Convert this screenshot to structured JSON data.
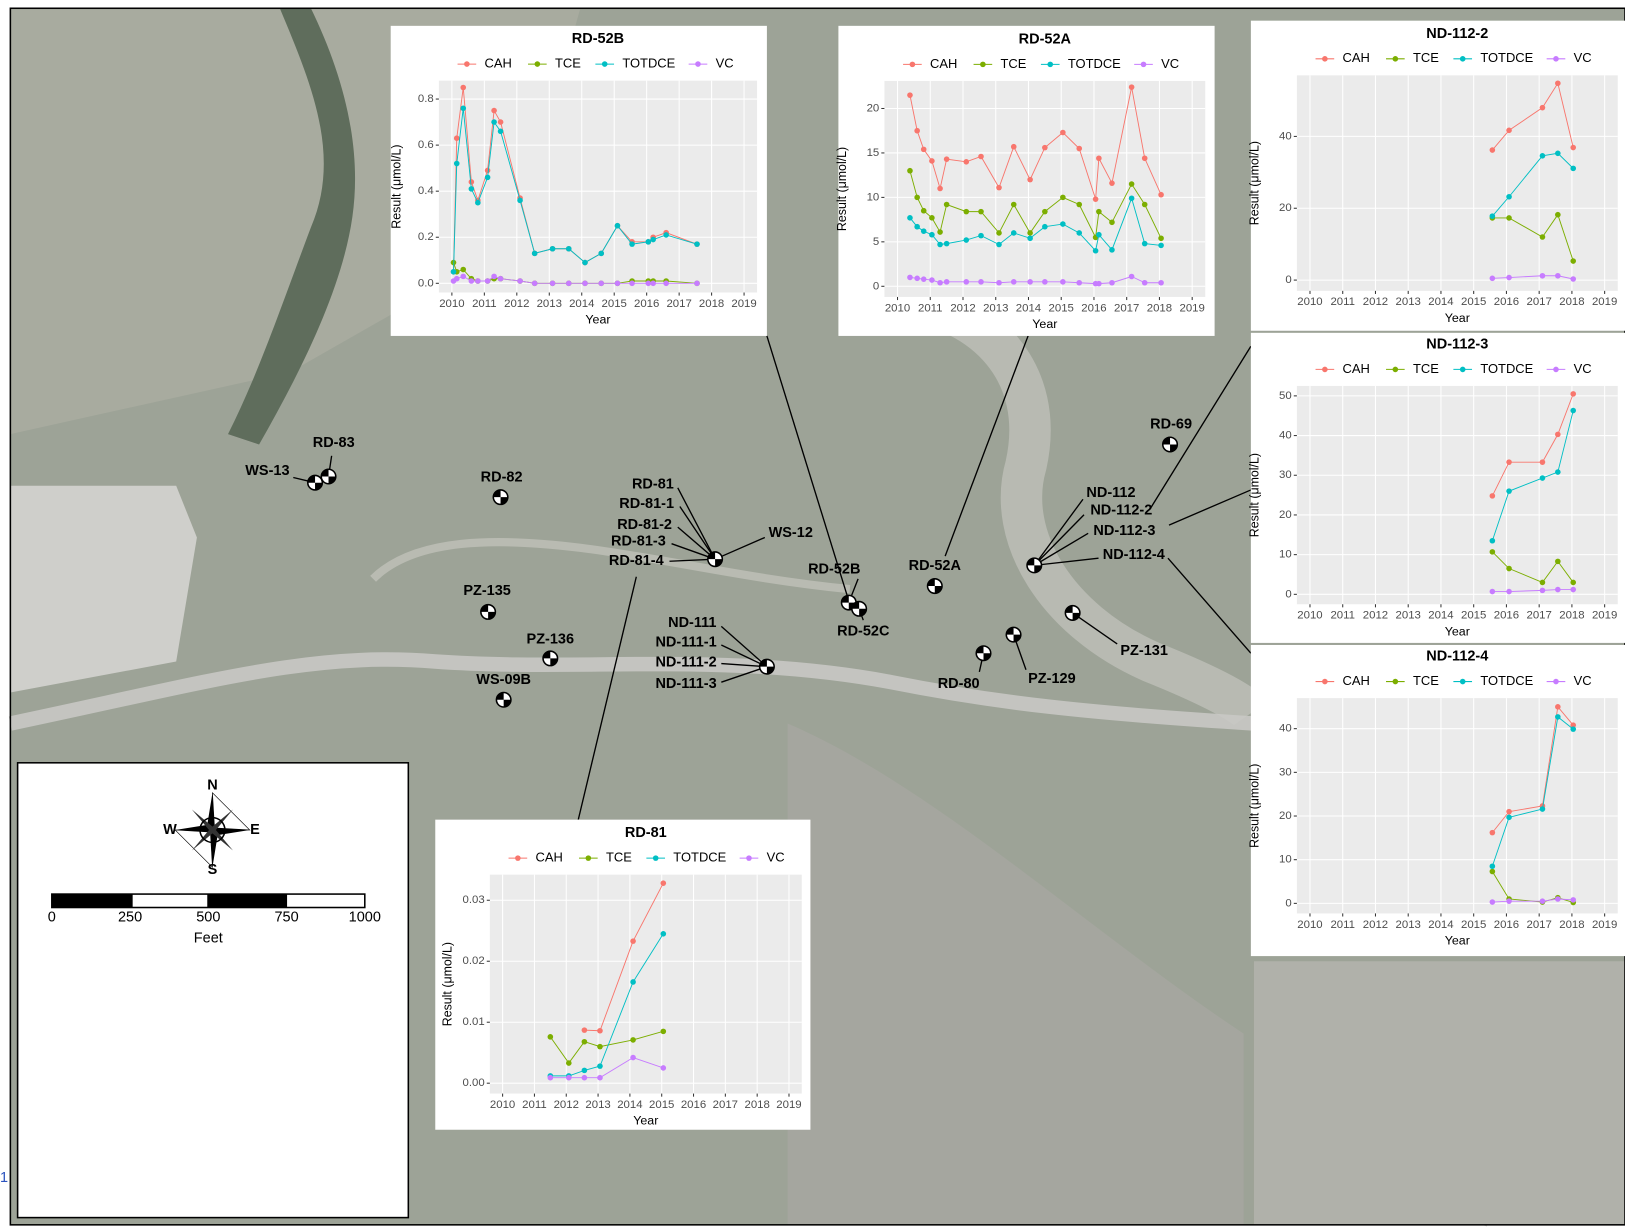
{
  "chart_data": [
    {
      "type": "line",
      "title": "RD-52B",
      "xlabel": "Year",
      "ylabel": "Result (μmol/L)",
      "x": [
        2010.05,
        2010.15,
        2010.35,
        2010.6,
        2010.8,
        2011.1,
        2011.3,
        2011.5,
        2012.1,
        2012.55,
        2013.1,
        2013.6,
        2014.1,
        2014.6,
        2015.1,
        2015.55,
        2016.05,
        2016.2,
        2016.6,
        2017.55
      ],
      "series": [
        {
          "name": "CAH",
          "color": "#F8766D",
          "values": [
            0.05,
            0.63,
            0.85,
            0.44,
            0.36,
            0.49,
            0.75,
            0.7,
            0.37,
            0.13,
            0.15,
            0.15,
            0.09,
            0.13,
            0.25,
            0.18,
            0.18,
            0.2,
            0.22,
            0.17
          ]
        },
        {
          "name": "TCE",
          "color": "#7CAE00",
          "values": [
            0.09,
            0.05,
            0.06,
            0.02,
            0.01,
            0.01,
            0.02,
            0.02,
            0.01,
            0,
            0,
            0,
            0,
            0,
            0,
            0.01,
            0.01,
            0.01,
            0.01,
            0
          ]
        },
        {
          "name": "TOTDCE",
          "color": "#00BFC4",
          "values": [
            0.05,
            0.52,
            0.76,
            0.41,
            0.35,
            0.46,
            0.7,
            0.66,
            0.36,
            0.13,
            0.15,
            0.15,
            0.09,
            0.13,
            0.25,
            0.17,
            0.18,
            0.19,
            0.21,
            0.17
          ]
        },
        {
          "name": "VC",
          "color": "#C77CFF",
          "values": [
            0.01,
            0.02,
            0.03,
            0.01,
            0.01,
            0.01,
            0.03,
            0.02,
            0.01,
            0,
            0,
            0,
            0,
            0,
            0,
            0,
            0,
            0,
            0,
            0
          ]
        }
      ],
      "xlim": [
        2009.6,
        2019.4
      ],
      "ylim": [
        -0.04,
        0.88
      ],
      "xticks": [
        2010,
        2011,
        2012,
        2013,
        2014,
        2015,
        2016,
        2017,
        2018,
        2019
      ],
      "yticks": [
        {
          "value": 0,
          "label": "0.0"
        },
        0.2,
        0.4,
        0.6,
        0.8
      ],
      "grid": true
    },
    {
      "type": "line",
      "title": "RD-52A",
      "xlabel": "Year",
      "ylabel": "Result (μmol/L)",
      "x": [
        2010.38,
        2010.6,
        2010.8,
        2011.05,
        2011.3,
        2011.5,
        2012.1,
        2012.55,
        2013.1,
        2013.55,
        2014.05,
        2014.5,
        2015.05,
        2015.55,
        2016.05,
        2016.15,
        2016.55,
        2017.15,
        2017.55,
        2018.05
      ],
      "series": [
        {
          "name": "CAH",
          "color": "#F8766D",
          "values": [
            21.5,
            17.5,
            15.4,
            14.1,
            11.0,
            14.3,
            14.0,
            14.6,
            11.1,
            15.7,
            12.0,
            15.6,
            17.3,
            15.5,
            9.8,
            14.4,
            11.6,
            22.4,
            14.4,
            10.3
          ]
        },
        {
          "name": "TCE",
          "color": "#7CAE00",
          "values": [
            13.0,
            10.0,
            8.5,
            7.7,
            6.1,
            9.2,
            8.4,
            8.4,
            6.0,
            9.2,
            6.0,
            8.4,
            10.0,
            9.2,
            5.5,
            8.4,
            7.2,
            11.5,
            9.2,
            5.4
          ]
        },
        {
          "name": "TOTDCE",
          "color": "#00BFC4",
          "values": [
            7.7,
            6.7,
            6.2,
            5.8,
            4.7,
            4.8,
            5.2,
            5.7,
            4.7,
            6.0,
            5.4,
            6.7,
            7.0,
            6.0,
            4.0,
            5.8,
            4.1,
            9.9,
            4.8,
            4.6
          ]
        },
        {
          "name": "VC",
          "color": "#C77CFF",
          "values": [
            1.0,
            0.9,
            0.8,
            0.7,
            0.4,
            0.5,
            0.5,
            0.5,
            0.4,
            0.5,
            0.5,
            0.5,
            0.5,
            0.4,
            0.3,
            0.3,
            0.4,
            1.1,
            0.4,
            0.4
          ]
        }
      ],
      "xlim": [
        2009.6,
        2019.4
      ],
      "ylim": [
        -1.2,
        23.1
      ],
      "xticks": [
        2010,
        2011,
        2012,
        2013,
        2014,
        2015,
        2016,
        2017,
        2018,
        2019
      ],
      "yticks": [
        0,
        5,
        10,
        15,
        20
      ],
      "grid": true
    },
    {
      "type": "line",
      "title": "ND-112-2",
      "xlabel": "Year",
      "ylabel": "Result (μmol/L)",
      "x": [
        2015.57,
        2016.08,
        2017.1,
        2017.57,
        2018.04
      ],
      "series": [
        {
          "name": "CAH",
          "color": "#F8766D",
          "values": [
            36.2,
            41.7,
            48.0,
            54.8,
            36.9
          ]
        },
        {
          "name": "TCE",
          "color": "#7CAE00",
          "values": [
            17.3,
            17.3,
            12.0,
            18.2,
            5.3
          ]
        },
        {
          "name": "TOTDCE",
          "color": "#00BFC4",
          "values": [
            17.8,
            23.2,
            34.6,
            35.3,
            31.1
          ]
        },
        {
          "name": "VC",
          "color": "#C77CFF",
          "values": [
            0.5,
            0.7,
            1.2,
            1.2,
            0.3
          ]
        }
      ],
      "xlim": [
        2009.6,
        2019.4
      ],
      "ylim": [
        -3,
        57
      ],
      "xticks": [
        2010,
        2011,
        2012,
        2013,
        2014,
        2015,
        2016,
        2017,
        2018,
        2019
      ],
      "yticks": [
        0,
        20,
        40
      ],
      "grid": true
    },
    {
      "type": "line",
      "title": "ND-112-3",
      "xlabel": "Year",
      "ylabel": "Result (μmol/L)",
      "x": [
        2015.57,
        2016.08,
        2017.1,
        2017.57,
        2018.04
      ],
      "series": [
        {
          "name": "CAH",
          "color": "#F8766D",
          "values": [
            24.8,
            33.3,
            33.3,
            40.3,
            50.5
          ]
        },
        {
          "name": "TCE",
          "color": "#7CAE00",
          "values": [
            10.7,
            6.5,
            3.0,
            8.3,
            3.0
          ]
        },
        {
          "name": "TOTDCE",
          "color": "#00BFC4",
          "values": [
            13.5,
            26.0,
            29.3,
            30.8,
            46.3
          ]
        },
        {
          "name": "VC",
          "color": "#C77CFF",
          "values": [
            0.7,
            0.7,
            1.0,
            1.2,
            1.2
          ]
        }
      ],
      "xlim": [
        2009.6,
        2019.4
      ],
      "ylim": [
        -2.5,
        52.5
      ],
      "xticks": [
        2010,
        2011,
        2012,
        2013,
        2014,
        2015,
        2016,
        2017,
        2018,
        2019
      ],
      "yticks": [
        0,
        10,
        20,
        30,
        40,
        50
      ],
      "grid": true
    },
    {
      "type": "line",
      "title": "ND-112-4",
      "xlabel": "Year",
      "ylabel": "Result (μmol/L)",
      "x": [
        2015.57,
        2016.08,
        2017.1,
        2017.57,
        2018.04
      ],
      "series": [
        {
          "name": "CAH",
          "color": "#F8766D",
          "values": [
            16.2,
            21.0,
            22.3,
            45.0,
            40.8
          ]
        },
        {
          "name": "TCE",
          "color": "#7CAE00",
          "values": [
            7.3,
            1.0,
            0.3,
            1.3,
            0.2
          ]
        },
        {
          "name": "TOTDCE",
          "color": "#00BFC4",
          "values": [
            8.5,
            19.7,
            21.6,
            42.7,
            39.9
          ]
        },
        {
          "name": "VC",
          "color": "#C77CFF",
          "values": [
            0.3,
            0.5,
            0.5,
            1.0,
            0.8
          ]
        }
      ],
      "xlim": [
        2009.6,
        2019.4
      ],
      "ylim": [
        -2.3,
        47
      ],
      "xticks": [
        2010,
        2011,
        2012,
        2013,
        2014,
        2015,
        2016,
        2017,
        2018,
        2019
      ],
      "yticks": [
        0,
        10,
        20,
        30,
        40
      ],
      "grid": true
    },
    {
      "type": "line",
      "title": "RD-81",
      "xlabel": "Year",
      "ylabel": "Result (μmol/L)",
      "x": [
        2011.5,
        2012.08,
        2012.57,
        2013.06,
        2014.1,
        2015.05
      ],
      "series": [
        {
          "name": "CAH",
          "color": "#F8766D",
          "values": [
            null,
            null,
            0.0087,
            0.0086,
            0.0233,
            0.0328
          ]
        },
        {
          "name": "TCE",
          "color": "#7CAE00",
          "values": [
            0.0076,
            0.0033,
            0.0068,
            0.006,
            0.0071,
            0.0085
          ]
        },
        {
          "name": "TOTDCE",
          "color": "#00BFC4",
          "values": [
            0.0012,
            0.0012,
            0.0021,
            0.0028,
            0.0166,
            0.0245
          ]
        },
        {
          "name": "VC",
          "color": "#C77CFF",
          "values": [
            0.0009,
            0.0009,
            0.0009,
            0.0009,
            0.0042,
            0.0025
          ]
        }
      ],
      "xlim": [
        2009.6,
        2019.4
      ],
      "ylim": [
        -0.0017,
        0.0342
      ],
      "xticks": [
        2010,
        2011,
        2012,
        2013,
        2014,
        2015,
        2016,
        2017,
        2018,
        2019
      ],
      "yticks": [
        {
          "value": 0,
          "label": "0.00"
        },
        0.01,
        0.02,
        0.03
      ],
      "grid": true
    }
  ],
  "map": {
    "well_labels": [
      "WS-13",
      "RD-83",
      "RD-82",
      "RD-81",
      "RD-81-1",
      "RD-81-2",
      "RD-81-3",
      "RD-81-4",
      "WS-12",
      "PZ-135",
      "PZ-136",
      "WS-09B",
      "ND-111",
      "ND-111-1",
      "ND-111-2",
      "ND-111-3",
      "RD-52B",
      "RD-52C",
      "RD-52A",
      "RD-69",
      "ND-112",
      "ND-112-2",
      "ND-112-3",
      "ND-112-4",
      "RD-80",
      "PZ-129",
      "PZ-131"
    ],
    "compass": {
      "north": "N",
      "east": "E",
      "south": "S",
      "west": "W"
    },
    "scale_bar": {
      "ticks": [
        0,
        250,
        500,
        750,
        1000
      ],
      "unit": "Feet"
    },
    "page_number": "1"
  }
}
